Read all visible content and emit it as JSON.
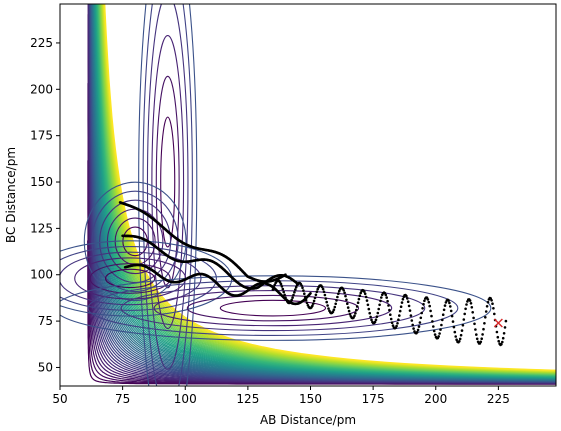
{
  "chart_data": {
    "type": "contour",
    "xlabel": "AB Distance/pm",
    "ylabel": "BC Distance/pm",
    "xlim": [
      50,
      248
    ],
    "ylim": [
      40,
      246
    ],
    "xticks": [
      "50",
      "75",
      "100",
      "125",
      "150",
      "175",
      "200",
      "225"
    ],
    "yticks": [
      "50",
      "75",
      "100",
      "125",
      "150",
      "175",
      "200",
      "225"
    ],
    "colormap": [
      "#440154",
      "#482878",
      "#3e4a89",
      "#31688e",
      "#26828e",
      "#1f9e89",
      "#35b779",
      "#6ece58",
      "#b5de2b",
      "#fde725"
    ],
    "surface": {
      "asymptote_x": 61,
      "asymptote_y": 41,
      "well_depth": 1,
      "description_units": "pm"
    },
    "trajectory": {
      "color": "#000000",
      "marker": "dot",
      "start": [
        74,
        139
      ],
      "starts": [
        [
          74,
          139
        ],
        [
          75,
          121
        ],
        [
          76,
          104
        ]
      ]
    },
    "end_point": {
      "x": 225,
      "y": 74,
      "marker": "x",
      "color": "#d62728"
    }
  }
}
